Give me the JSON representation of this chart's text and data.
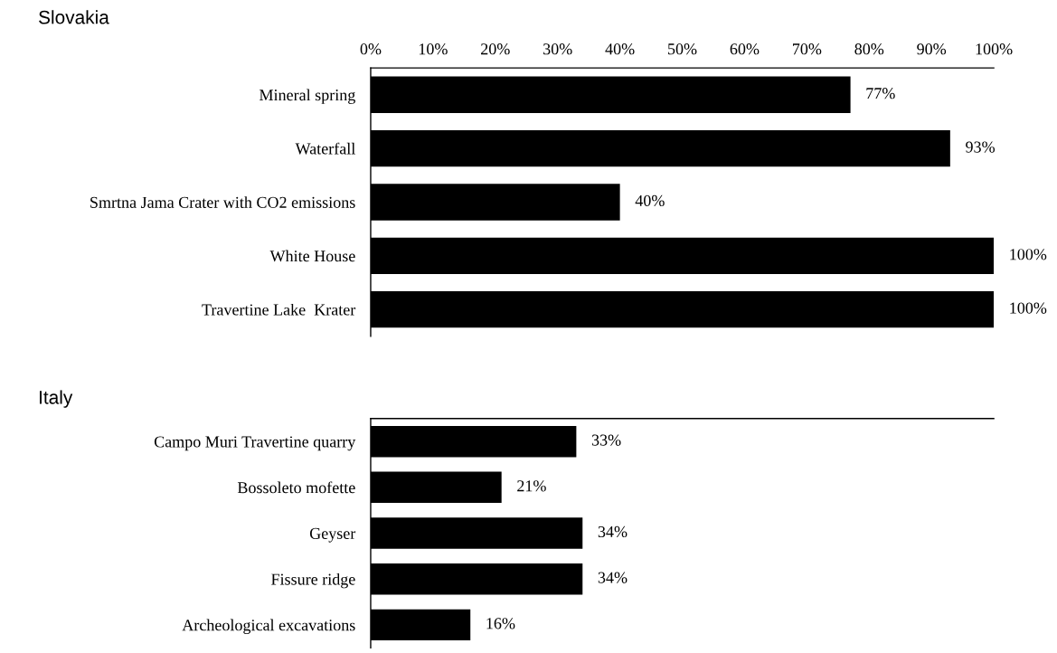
{
  "chart_data": [
    {
      "type": "bar",
      "orientation": "horizontal",
      "title": "Slovakia",
      "categories": [
        "Mineral spring",
        "Waterfall",
        "Smrtna Jama Crater with CO2 emissions",
        "White House",
        "Travertine Lake  Krater"
      ],
      "values": [
        77,
        93,
        40,
        100,
        100
      ],
      "value_labels": [
        "77%",
        "93%",
        "40%",
        "100%",
        "100%"
      ],
      "color": "#000000",
      "xlim": [
        0,
        100
      ],
      "xticks": [
        {
          "value": 0,
          "label": "0%"
        },
        {
          "value": 10,
          "label": "10%"
        },
        {
          "value": 20,
          "label": "20%"
        },
        {
          "value": 30,
          "label": "30%"
        },
        {
          "value": 40,
          "label": "40%"
        },
        {
          "value": 50,
          "label": "50%"
        },
        {
          "value": 60,
          "label": "60%"
        },
        {
          "value": 70,
          "label": "70%"
        },
        {
          "value": 80,
          "label": "80%"
        },
        {
          "value": 90,
          "label": "90%"
        },
        {
          "value": 100,
          "label": "100%"
        }
      ],
      "grid": false,
      "legend": false
    },
    {
      "type": "bar",
      "orientation": "horizontal",
      "title": "Italy",
      "categories": [
        "Campo Muri Travertine quarry",
        "Bossoleto mofette",
        "Geyser",
        "Fissure ridge",
        "Archeological excavations"
      ],
      "values": [
        33,
        21,
        34,
        34,
        16
      ],
      "value_labels": [
        "33%",
        "21%",
        "34%",
        "34%",
        "16%"
      ],
      "color": "#000000",
      "xlim": [
        0,
        100
      ],
      "tick_labels": "y",
      "grid": false,
      "legend": false
    }
  ]
}
